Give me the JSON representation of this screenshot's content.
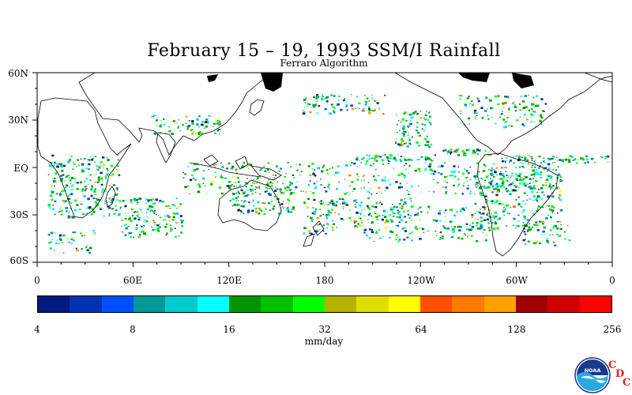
{
  "title": "February 15 – 19, 1993 SSM/I Rainfall",
  "subtitle": "Ferraro Algorithm",
  "lat_labels": [
    "60N",
    "30N",
    "EQ",
    "30S",
    "60S"
  ],
  "lon_labels": [
    "0",
    "60E",
    "120E",
    "180",
    "120W",
    "60W",
    "0"
  ],
  "colorbar": {
    "tick_labels": [
      "4",
      "8",
      "16",
      "32",
      "64",
      "128",
      "256"
    ],
    "unit": "mm/day",
    "colors": [
      "#001a80",
      "#0033b3",
      "#0050ff",
      "#009999",
      "#00cccc",
      "#00ffff",
      "#009400",
      "#00c000",
      "#00ff00",
      "#b3b300",
      "#dddd00",
      "#ffff00",
      "#ff5000",
      "#ff7a00",
      "#ffa000",
      "#a00000",
      "#d00000",
      "#ff0000"
    ]
  },
  "logo": {
    "name": "noaa-logo",
    "text": "NOAA"
  },
  "cdc_letters": [
    "C",
    "D",
    "C"
  ]
}
